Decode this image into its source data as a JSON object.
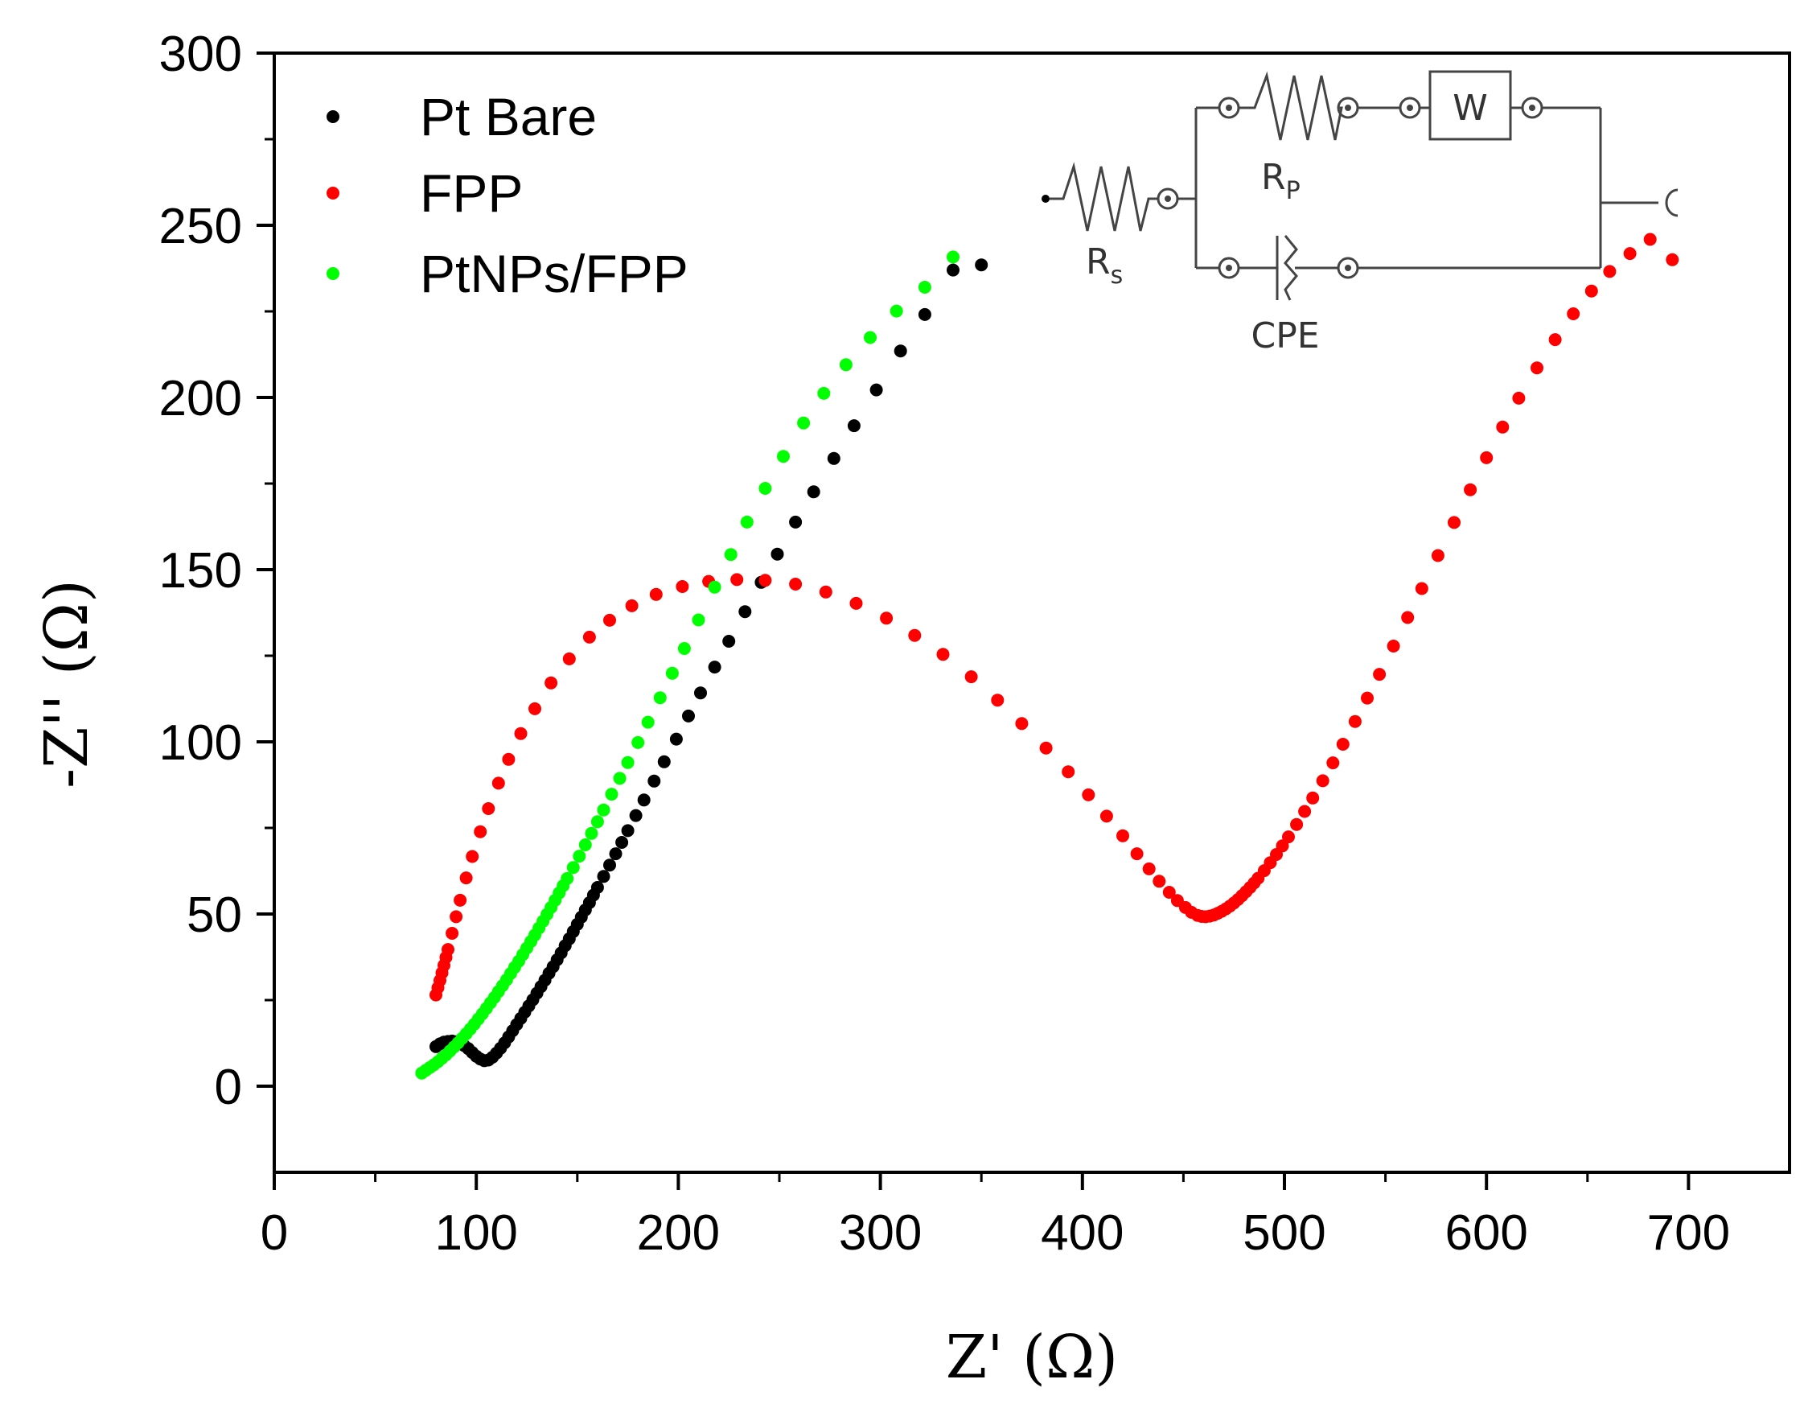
{
  "chart_data": {
    "type": "scatter",
    "title": "",
    "xlabel": "Z' (Ω)",
    "ylabel": "-Z'' (Ω)",
    "xlim": [
      0,
      750
    ],
    "ylim": [
      -25,
      300
    ],
    "x_ticks": [
      0,
      100,
      200,
      300,
      400,
      500,
      600,
      700
    ],
    "x_tick_labels": [
      "0",
      "100",
      "200",
      "300",
      "400",
      "500",
      "600",
      "700"
    ],
    "y_ticks": [
      0,
      50,
      100,
      150,
      200,
      250,
      300
    ],
    "y_tick_labels": [
      "0",
      "50",
      "100",
      "150",
      "200",
      "250",
      "300"
    ],
    "legend_position": "top-left",
    "grid": false,
    "series": [
      {
        "name": "Pt Bare",
        "color": "#000000",
        "x": [
          80,
          82,
          84,
          86,
          88,
          90,
          92,
          94,
          96,
          98,
          100,
          102,
          104,
          106,
          108,
          110,
          112,
          114,
          116,
          118,
          120,
          122,
          124,
          126,
          128,
          130,
          132,
          134,
          136,
          138,
          140,
          142,
          144,
          146,
          148,
          150,
          152,
          154,
          156,
          158,
          160,
          163,
          166,
          169,
          172,
          175,
          179,
          183,
          188,
          193,
          199,
          205,
          211,
          218,
          225,
          233,
          241,
          249,
          258,
          267,
          277,
          287,
          298,
          310,
          322,
          336,
          350
        ],
        "y": [
          11.5,
          12.3,
          12.8,
          13.0,
          13.1,
          12.9,
          12.5,
          11.8,
          10.9,
          9.8,
          8.7,
          7.9,
          7.4,
          7.6,
          8.4,
          9.6,
          11.0,
          12.6,
          14.3,
          16.1,
          17.9,
          19.7,
          21.5,
          23.3,
          25.1,
          27.0,
          28.9,
          30.8,
          32.8,
          34.7,
          36.7,
          38.7,
          40.8,
          42.8,
          44.9,
          47.0,
          49.1,
          51.2,
          53.3,
          55.5,
          57.7,
          60.9,
          64.2,
          67.5,
          70.8,
          74.2,
          78.6,
          83.1,
          88.6,
          94.2,
          100.8,
          107.5,
          114.2,
          121.7,
          129.2,
          137.8,
          146.3,
          154.5,
          163.8,
          172.6,
          182.3,
          191.8,
          202.2,
          213.5,
          224.1,
          237.0,
          238.5
        ]
      },
      {
        "name": "FPP",
        "color": "#ff0000",
        "x": [
          80,
          81,
          82,
          83,
          84,
          85,
          86,
          88,
          90,
          92,
          95,
          98,
          102,
          106,
          111,
          116,
          122,
          129,
          137,
          146,
          156,
          166,
          177,
          189,
          202,
          215,
          229,
          243,
          258,
          273,
          288,
          303,
          317,
          331,
          345,
          358,
          370,
          382,
          393,
          403,
          412,
          420,
          427,
          433,
          438,
          443,
          447,
          451,
          454,
          457,
          459,
          461,
          463,
          465,
          467,
          469,
          471,
          473,
          475,
          477,
          479,
          481,
          483,
          485,
          487,
          490,
          493,
          496,
          499,
          502,
          506,
          510,
          514,
          519,
          524,
          529,
          535,
          541,
          547,
          554,
          561,
          568,
          576,
          584,
          592,
          600,
          608,
          616,
          625,
          634,
          643,
          652,
          661,
          671,
          681,
          692
        ],
        "y": [
          26.5,
          28.6,
          30.7,
          32.9,
          35.1,
          37.4,
          39.7,
          44.4,
          49.2,
          54.0,
          60.5,
          66.7,
          73.9,
          80.6,
          88.0,
          94.9,
          102.4,
          109.6,
          117.1,
          124.1,
          130.4,
          135.3,
          139.5,
          142.8,
          145.1,
          146.6,
          147.1,
          146.9,
          145.8,
          143.5,
          140.2,
          135.9,
          130.9,
          125.4,
          118.9,
          112.1,
          105.3,
          98.2,
          91.3,
          84.6,
          78.4,
          72.7,
          67.5,
          63.1,
          59.5,
          56.3,
          53.9,
          51.9,
          50.5,
          49.6,
          49.3,
          49.2,
          49.4,
          49.7,
          50.2,
          50.8,
          51.5,
          52.3,
          53.2,
          54.2,
          55.3,
          56.5,
          57.7,
          59.0,
          60.4,
          62.6,
          64.9,
          67.3,
          69.8,
          72.4,
          76.0,
          79.8,
          83.7,
          88.7,
          93.9,
          99.3,
          105.9,
          112.7,
          119.6,
          127.8,
          136.1,
          144.5,
          154.1,
          163.7,
          173.2,
          182.5,
          191.4,
          199.8,
          208.6,
          216.8,
          224.3,
          230.9,
          236.6,
          241.8,
          245.9,
          240.0
        ]
      },
      {
        "name": "PtNPs/FPP",
        "color": "#00ff00",
        "x": [
          73,
          75,
          77,
          79,
          81,
          83,
          85,
          87,
          89,
          91,
          93,
          95,
          97,
          99,
          101,
          103,
          105,
          107,
          109,
          111,
          113,
          115,
          117,
          119,
          121,
          123,
          125,
          127,
          129,
          131,
          133,
          135,
          137,
          139,
          141,
          143,
          145,
          148,
          151,
          154,
          157,
          160,
          163,
          167,
          171,
          175,
          180,
          185,
          191,
          197,
          203,
          210,
          218,
          226,
          234,
          243,
          252,
          262,
          272,
          283,
          295,
          308,
          322,
          336
        ],
        "y": [
          3.8,
          4.6,
          5.4,
          6.2,
          7.1,
          8.1,
          9.1,
          10.2,
          11.4,
          12.6,
          13.9,
          15.2,
          16.6,
          18.0,
          19.5,
          21.0,
          22.6,
          24.2,
          25.8,
          27.5,
          29.2,
          30.9,
          32.7,
          34.5,
          36.3,
          38.2,
          40.1,
          42.0,
          43.9,
          45.9,
          47.9,
          49.9,
          51.9,
          54.0,
          56.1,
          58.2,
          60.3,
          63.5,
          66.8,
          70.1,
          73.4,
          76.8,
          80.2,
          84.8,
          89.4,
          94.0,
          99.8,
          105.7,
          112.8,
          119.9,
          127.1,
          135.4,
          144.9,
          154.4,
          163.8,
          173.6,
          182.9,
          192.6,
          201.2,
          209.5,
          217.4,
          225.1,
          232.0,
          240.8
        ]
      }
    ],
    "inset": {
      "type": "circuit",
      "labels": {
        "rs_main": "R",
        "rs_sub": "s",
        "rp_main": "R",
        "rp_sub": "P",
        "warburg": "W",
        "cpe": "CPE"
      }
    }
  }
}
